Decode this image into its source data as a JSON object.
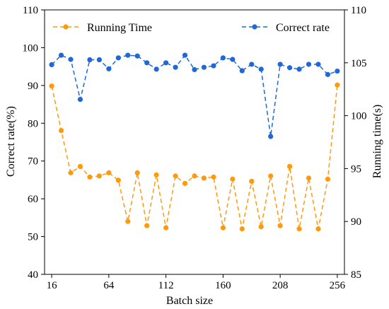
{
  "chart_data": {
    "type": "line",
    "xlabel": "Batch size",
    "ylabel_left": "Correct rate(%)",
    "ylabel_right": "Running time(s)",
    "xlim": [
      10,
      262
    ],
    "ylim_left": [
      40,
      110
    ],
    "ylim_right": [
      85,
      110
    ],
    "xticks": [
      16,
      64,
      112,
      160,
      208,
      256
    ],
    "yticks_left": [
      40,
      50,
      60,
      70,
      80,
      90,
      100,
      110
    ],
    "yticks_right": [
      85,
      90,
      95,
      100,
      105,
      110
    ],
    "legend_placement": "top",
    "grid": false,
    "x": [
      16,
      24,
      32,
      40,
      48,
      56,
      64,
      72,
      80,
      88,
      96,
      104,
      112,
      120,
      128,
      136,
      144,
      152,
      160,
      168,
      176,
      184,
      192,
      200,
      208,
      216,
      224,
      232,
      240,
      248,
      256
    ],
    "series": [
      {
        "name": "Running Time",
        "axis": "right",
        "color": "#ff9a0e",
        "line_style": "dashed",
        "marker": "circle",
        "values": [
          102.8,
          98.6,
          94.6,
          95.2,
          94.2,
          94.3,
          94.6,
          93.9,
          90.0,
          94.6,
          89.6,
          94.4,
          89.4,
          94.3,
          93.6,
          94.3,
          94.1,
          94.2,
          89.4,
          94.0,
          89.3,
          93.8,
          89.5,
          94.3,
          89.6,
          95.2,
          89.3,
          94.1,
          89.3,
          94.0,
          102.9
        ]
      },
      {
        "name": "Correct rate",
        "axis": "left",
        "color": "#1f68d6",
        "line_style": "dashed",
        "marker": "circle",
        "values": [
          95.5,
          98.0,
          96.9,
          86.3,
          96.8,
          96.8,
          94.4,
          97.3,
          98.0,
          97.8,
          96.0,
          94.3,
          96.0,
          94.8,
          98.0,
          94.2,
          94.8,
          95.2,
          97.3,
          96.9,
          93.9,
          95.6,
          94.3,
          76.5,
          95.6,
          94.7,
          94.3,
          95.6,
          95.6,
          92.9,
          93.8
        ]
      }
    ]
  }
}
